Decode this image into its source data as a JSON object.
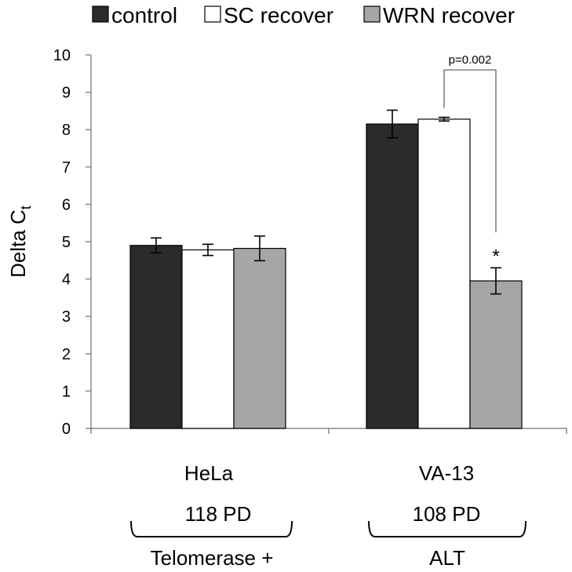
{
  "chart_data": {
    "type": "bar",
    "title": "",
    "xlabel": "",
    "ylabel": "Delta C",
    "ylabel_subscript": "t",
    "ylim": [
      0,
      10
    ],
    "yticks": [
      "0",
      "1",
      "2",
      "3",
      "4",
      "5",
      "6",
      "7",
      "8",
      "9",
      "10"
    ],
    "categories": [
      "HeLa",
      "VA-13"
    ],
    "category_sublabels": [
      "118 PD",
      "108 PD"
    ],
    "group_labels": [
      "Telomerase +",
      "ALT"
    ],
    "legend_position": "top",
    "series": [
      {
        "name": "control",
        "color": "#2b2b2b",
        "values": [
          4.9,
          8.15
        ],
        "errors": [
          0.2,
          0.37
        ]
      },
      {
        "name": "SC recover",
        "color": "#ffffff",
        "values": [
          4.78,
          8.28
        ],
        "errors": [
          0.15,
          0.05
        ]
      },
      {
        "name": "WRN recover",
        "color": "#a6a6a6",
        "values": [
          4.82,
          3.95
        ],
        "errors": [
          0.33,
          0.35
        ]
      }
    ],
    "annotations": [
      {
        "text": "p=0.002",
        "category": 1,
        "between_series": [
          1,
          2
        ]
      },
      {
        "text": "*",
        "category": 1,
        "series": 2
      }
    ]
  }
}
